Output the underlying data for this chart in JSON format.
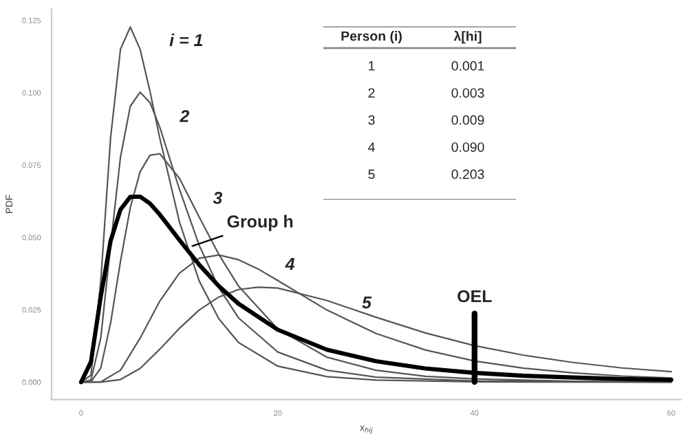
{
  "chart_data": [
    {
      "type": "line",
      "xlabel": "x$_{hij}$",
      "ylabel": "PDF",
      "xlim": [
        -3,
        61
      ],
      "ylim": [
        -0.006,
        0.129
      ],
      "xticks": [
        0,
        20,
        40,
        60
      ],
      "yticks": [
        {
          "value": 0,
          "label": "0.000"
        },
        {
          "value": 0.025,
          "label": "0.025"
        },
        {
          "value": 0.05,
          "label": "0.050"
        },
        {
          "value": 0.075,
          "label": "0.075"
        },
        {
          "value": 0.1,
          "label": "0.100"
        },
        {
          "value": 0.125,
          "label": "0.125"
        }
      ],
      "grid": false,
      "legend": false,
      "marker": "none",
      "line_style": "solid",
      "series": [
        {
          "color": "#555555",
          "x": [
            0,
            1,
            2,
            3,
            4,
            5,
            6,
            7,
            8,
            10,
            12,
            14,
            16,
            20,
            25,
            30,
            40,
            60
          ],
          "values": [
            0,
            0.0024,
            0.035,
            0.0845,
            0.115,
            0.1227,
            0.115,
            0.1005,
            0.0843,
            0.0553,
            0.035,
            0.0219,
            0.0137,
            0.0055,
            0.0019,
            0.0007,
            0.0001,
            0
          ]
        },
        {
          "color": "#555555",
          "x": [
            0,
            1,
            2,
            3,
            4,
            5,
            6,
            7,
            8,
            10,
            12,
            14,
            16,
            20,
            25,
            30,
            40,
            60
          ],
          "values": [
            0,
            0.0007,
            0.0153,
            0.0473,
            0.0777,
            0.0953,
            0.1002,
            0.0966,
            0.0881,
            0.0666,
            0.0473,
            0.0326,
            0.0222,
            0.0104,
            0.0041,
            0.0017,
            0.0004,
            0
          ]
        },
        {
          "color": "#555555",
          "x": [
            0,
            1,
            2,
            3,
            4,
            5,
            6,
            7,
            8,
            10,
            12,
            14,
            16,
            20,
            25,
            30,
            35,
            40,
            50,
            60
          ],
          "values": [
            0,
            0.0001,
            0.0049,
            0.0205,
            0.0417,
            0.0603,
            0.0727,
            0.0784,
            0.0789,
            0.0704,
            0.0571,
            0.0441,
            0.0332,
            0.0183,
            0.0086,
            0.0041,
            0.002,
            0.0011,
            0.0003,
            0.0001
          ]
        },
        {
          "color": "#555555",
          "x": [
            0,
            2,
            4,
            6,
            8,
            10,
            12,
            14,
            16,
            18,
            20,
            25,
            30,
            35,
            40,
            45,
            50,
            55,
            60
          ],
          "values": [
            0,
            0.0001,
            0.0041,
            0.0152,
            0.028,
            0.0377,
            0.0428,
            0.0439,
            0.0423,
            0.0391,
            0.0351,
            0.0249,
            0.0168,
            0.0111,
            0.0073,
            0.0048,
            0.0032,
            0.0021,
            0.0014
          ]
        },
        {
          "color": "#555555",
          "x": [
            0,
            2,
            4,
            6,
            8,
            10,
            12,
            14,
            16,
            18,
            20,
            25,
            30,
            35,
            40,
            45,
            50,
            55,
            60
          ],
          "values": [
            0,
            0,
            0.0009,
            0.0047,
            0.0114,
            0.0186,
            0.0249,
            0.0294,
            0.032,
            0.0328,
            0.0325,
            0.0282,
            0.0224,
            0.017,
            0.0126,
            0.0093,
            0.0068,
            0.0049,
            0.0036
          ]
        },
        {
          "color": "#000000",
          "x": [
            0,
            1,
            2,
            3,
            4,
            5,
            6,
            7,
            8,
            10,
            12,
            14,
            16,
            20,
            25,
            30,
            35,
            40,
            45,
            50,
            55,
            60
          ],
          "values": [
            0,
            0.007,
            0.0296,
            0.0488,
            0.0596,
            0.064,
            0.0641,
            0.0617,
            0.0579,
            0.0491,
            0.0406,
            0.0332,
            0.0271,
            0.0181,
            0.0112,
            0.0072,
            0.0047,
            0.0032,
            0.0022,
            0.0016,
            0.0011,
            0.0008
          ]
        }
      ],
      "ref_lines": [
        {
          "axis": "x",
          "value": 40,
          "label": "OEL",
          "color": "#000000"
        }
      ],
      "annotations": [
        {
          "text": "i = 1",
          "x": 7,
          "y": 0.1005
        },
        {
          "text": "2",
          "x": 8,
          "y": 0.0881
        },
        {
          "text": "3",
          "x": 10,
          "y": 0.0704
        },
        {
          "text": "4",
          "x": 16,
          "y": 0.0423
        },
        {
          "text": "5",
          "x": 30,
          "y": 0.0224
        },
        {
          "text": "Group h",
          "x": 11.3,
          "y": 0.047
        },
        "Person (i)",
        "λ[hi]",
        "1",
        "0.001",
        "2",
        "0.003",
        "3",
        "0.009",
        "4",
        "0.090",
        "5",
        "0.203"
      ]
    }
  ]
}
